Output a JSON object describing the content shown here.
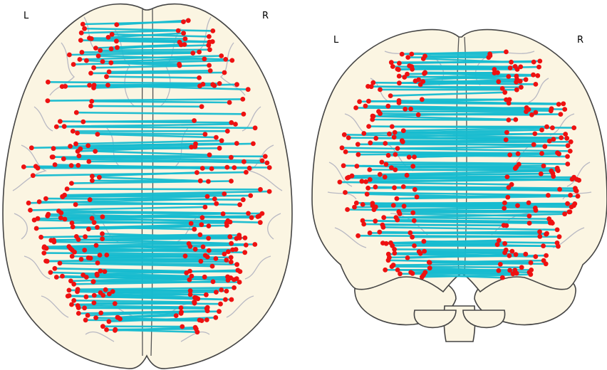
{
  "views": [
    {
      "id": "axial",
      "left_label": "L",
      "right_label": "R"
    },
    {
      "id": "coronal",
      "left_label": "L",
      "right_label": "R"
    }
  ],
  "colors": {
    "background": "#ffffff",
    "brain_fill": "#fbf5e2",
    "brain_outline": "#444444",
    "sulci": "#b9b9c3",
    "edge": "#17bcd0",
    "node": "#ee1111"
  }
}
